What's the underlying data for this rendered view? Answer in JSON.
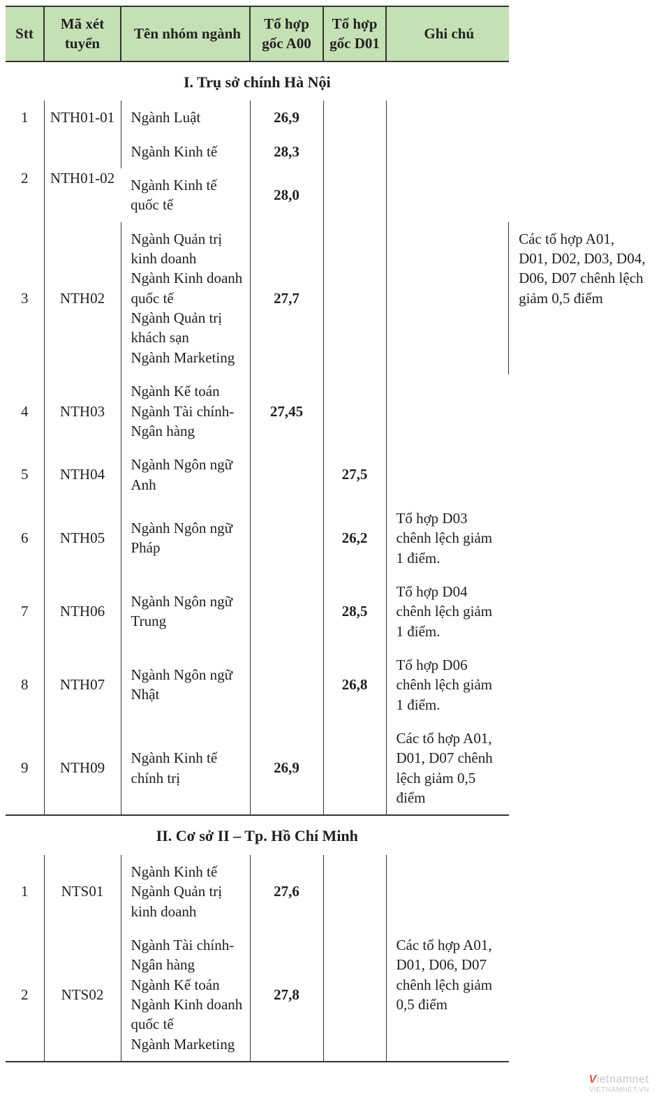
{
  "headers": {
    "stt": "Stt",
    "code": "Mã xét tuyển",
    "name": "Tên nhóm ngành",
    "a00": "Tổ hợp gốc A00",
    "d01": "Tổ hợp gốc D01",
    "note": "Ghi chú"
  },
  "sections": [
    {
      "title": "I. Trụ sở chính Hà Nội",
      "rows": [
        {
          "stt": "1",
          "code": "NTH01-01",
          "codeRowspan": 1,
          "name": "Ngành Luật",
          "a00": "26,9",
          "d01": "",
          "note": "",
          "noteRowspan": 4
        },
        {
          "stt": "2",
          "sttRowspan": 2,
          "code": "NTH01-02",
          "codeRowspan": 2,
          "name": "Ngành Kinh tế",
          "a00": "28,3",
          "d01": ""
        },
        {
          "name": "Ngành Kinh tế quốc tế",
          "a00": "28,0",
          "d01": ""
        },
        {
          "stt": "3",
          "code": "NTH02",
          "name": "Ngành Quản trị kinh doanh\nNgành Kinh doanh quốc tế\nNgành Quản trị khách sạn\nNgành Marketing",
          "a00": "27,7",
          "d01": "",
          "note": "Các tổ hợp A01, D01, D02, D03, D04, D06, D07 chênh lệch giảm 0,5 điểm",
          "noteRowspan": 1,
          "noteValign": "top"
        },
        {
          "stt": "4",
          "code": "NTH03",
          "name": "Ngành Kế toán\nNgành Tài chính- Ngân hàng",
          "a00": "27,45",
          "d01": "",
          "note": "",
          "noteRowspan": 2
        },
        {
          "stt": "5",
          "code": "NTH04",
          "name": "Ngành Ngôn ngữ Anh",
          "a00": "",
          "d01": "27,5"
        },
        {
          "stt": "6",
          "code": "NTH05",
          "name": "Ngành Ngôn ngữ Pháp",
          "a00": "",
          "d01": "26,2",
          "note": "Tổ hợp D03 chênh lệch giảm 1 điểm."
        },
        {
          "stt": "7",
          "code": "NTH06",
          "name": "Ngành Ngôn ngữ Trung",
          "a00": "",
          "d01": "28,5",
          "note": "Tổ hợp D04 chênh lệch giảm 1 điểm."
        },
        {
          "stt": "8",
          "code": "NTH07",
          "name": "Ngành Ngôn ngữ Nhật",
          "a00": "",
          "d01": "26,8",
          "note": "Tổ hợp D06 chênh lệch giảm 1 điểm."
        },
        {
          "stt": "9",
          "code": "NTH09",
          "name": "Ngành Kinh tế chính trị",
          "a00": "26,9",
          "d01": "",
          "note": "Các tổ hợp A01, D01, D07 chênh lệch giảm 0,5 điểm"
        }
      ]
    },
    {
      "title": "II. Cơ sở II – Tp. Hồ Chí Minh",
      "rows": [
        {
          "stt": "1",
          "code": "NTS01",
          "name": "Ngành Kinh tế\nNgành Quản trị kinh doanh",
          "a00": "27,6",
          "d01": "",
          "note": "",
          "noteRowspan": 1
        },
        {
          "stt": "2",
          "code": "NTS02",
          "name": "Ngành Tài chính-Ngân hàng\nNgành Kế toán\nNgành Kinh doanh quốc tế\nNgành Marketing",
          "a00": "27,8",
          "d01": "",
          "note": "Các tổ hợp A01, D01, D06, D07 chênh lệch giảm 0,5 điểm",
          "noteValign": "top"
        }
      ]
    }
  ],
  "watermark": {
    "brand": "Vietnamnet",
    "sub": "VIETNAMNET.VN"
  },
  "colors": {
    "header_bg": "#c5e0b4",
    "border": "#333333",
    "text": "#202020"
  }
}
